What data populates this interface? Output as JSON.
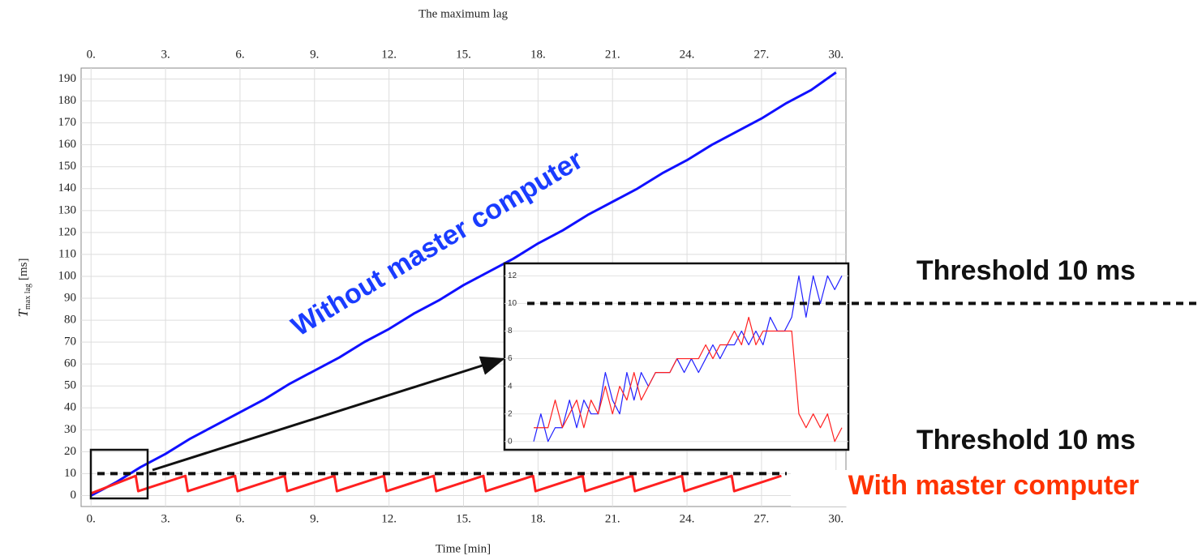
{
  "chart_data": [
    {
      "type": "line",
      "title": "The maximum lag",
      "x_label": "Time [min]",
      "y_label": {
        "symbol": "T",
        "subscript": "max lag",
        "unit": "[ms]"
      },
      "xlim": [
        -0.4,
        30.4
      ],
      "ylim": [
        -5,
        195
      ],
      "xticks": [
        {
          "value": 0,
          "label": "0."
        },
        {
          "value": 3,
          "label": "3."
        },
        {
          "value": 6,
          "label": "6."
        },
        {
          "value": 9,
          "label": "9."
        },
        {
          "value": 12,
          "label": "12."
        },
        {
          "value": 15,
          "label": "15."
        },
        {
          "value": 18,
          "label": "18."
        },
        {
          "value": 21,
          "label": "21."
        },
        {
          "value": 24,
          "label": "24."
        },
        {
          "value": 27,
          "label": "27."
        },
        {
          "value": 30,
          "label": "30."
        }
      ],
      "yticks": [
        0,
        10,
        20,
        30,
        40,
        50,
        60,
        70,
        80,
        90,
        100,
        110,
        120,
        130,
        140,
        150,
        160,
        170,
        180,
        190
      ],
      "grid": true,
      "threshold": 10,
      "series": [
        {
          "color": "#1010ff",
          "x": [
            0,
            1,
            2,
            3,
            4,
            5,
            6,
            7,
            8,
            9,
            10,
            11,
            12,
            13,
            14,
            15,
            16,
            17,
            18,
            19,
            20,
            21,
            22,
            23,
            24,
            25,
            26,
            27,
            28,
            29,
            30
          ],
          "values": [
            0,
            6,
            13,
            19,
            26,
            32,
            38,
            44,
            51,
            57,
            63,
            70,
            76,
            83,
            89,
            96,
            102,
            108,
            115,
            121,
            128,
            134,
            140,
            147,
            153,
            160,
            166,
            172,
            179,
            185,
            193
          ]
        },
        {
          "color": "#ff2020",
          "x": [
            0,
            1.8,
            1.9,
            3.8,
            3.9,
            5.8,
            5.9,
            7.8,
            7.9,
            9.8,
            9.9,
            11.8,
            11.9,
            13.8,
            13.9,
            15.8,
            15.9,
            17.8,
            17.9,
            19.8,
            19.9,
            21.8,
            21.9,
            23.8,
            23.9,
            25.8,
            25.9,
            27.8
          ],
          "values": [
            1,
            9,
            2,
            9,
            2,
            9,
            2,
            9,
            2,
            9,
            2,
            9,
            2,
            9,
            2,
            9,
            2,
            9,
            2,
            9,
            2,
            9,
            2,
            9,
            2,
            9,
            2,
            9
          ]
        }
      ],
      "annotations": [
        "Without master computer",
        "Threshold 10 ms",
        "Threshold 10 ms",
        "With master computer"
      ]
    },
    {
      "type": "line",
      "ylim": [
        -0.6,
        12.9
      ],
      "yticks": [
        0,
        2,
        4,
        6,
        8,
        10,
        12
      ],
      "grid": true,
      "threshold": 10,
      "series": [
        {
          "color": "#2020ff",
          "values": [
            0,
            2,
            0,
            1,
            1,
            3,
            1,
            3,
            2,
            2,
            5,
            3,
            2,
            5,
            3,
            5,
            4,
            5,
            5,
            5,
            6,
            5,
            6,
            5,
            6,
            7,
            6,
            7,
            7,
            8,
            7,
            8,
            7,
            9,
            8,
            8,
            9,
            12,
            9,
            12,
            10,
            12,
            11,
            12
          ]
        },
        {
          "color": "#ff2020",
          "values": [
            1,
            1,
            1,
            3,
            1,
            2,
            3,
            1,
            3,
            2,
            4,
            2,
            4,
            3,
            5,
            3,
            4,
            5,
            5,
            5,
            6,
            6,
            6,
            6,
            7,
            6,
            7,
            7,
            8,
            7,
            9,
            7,
            8,
            8,
            8,
            8,
            8,
            2,
            1,
            2,
            1,
            2,
            0,
            1
          ]
        }
      ]
    }
  ]
}
